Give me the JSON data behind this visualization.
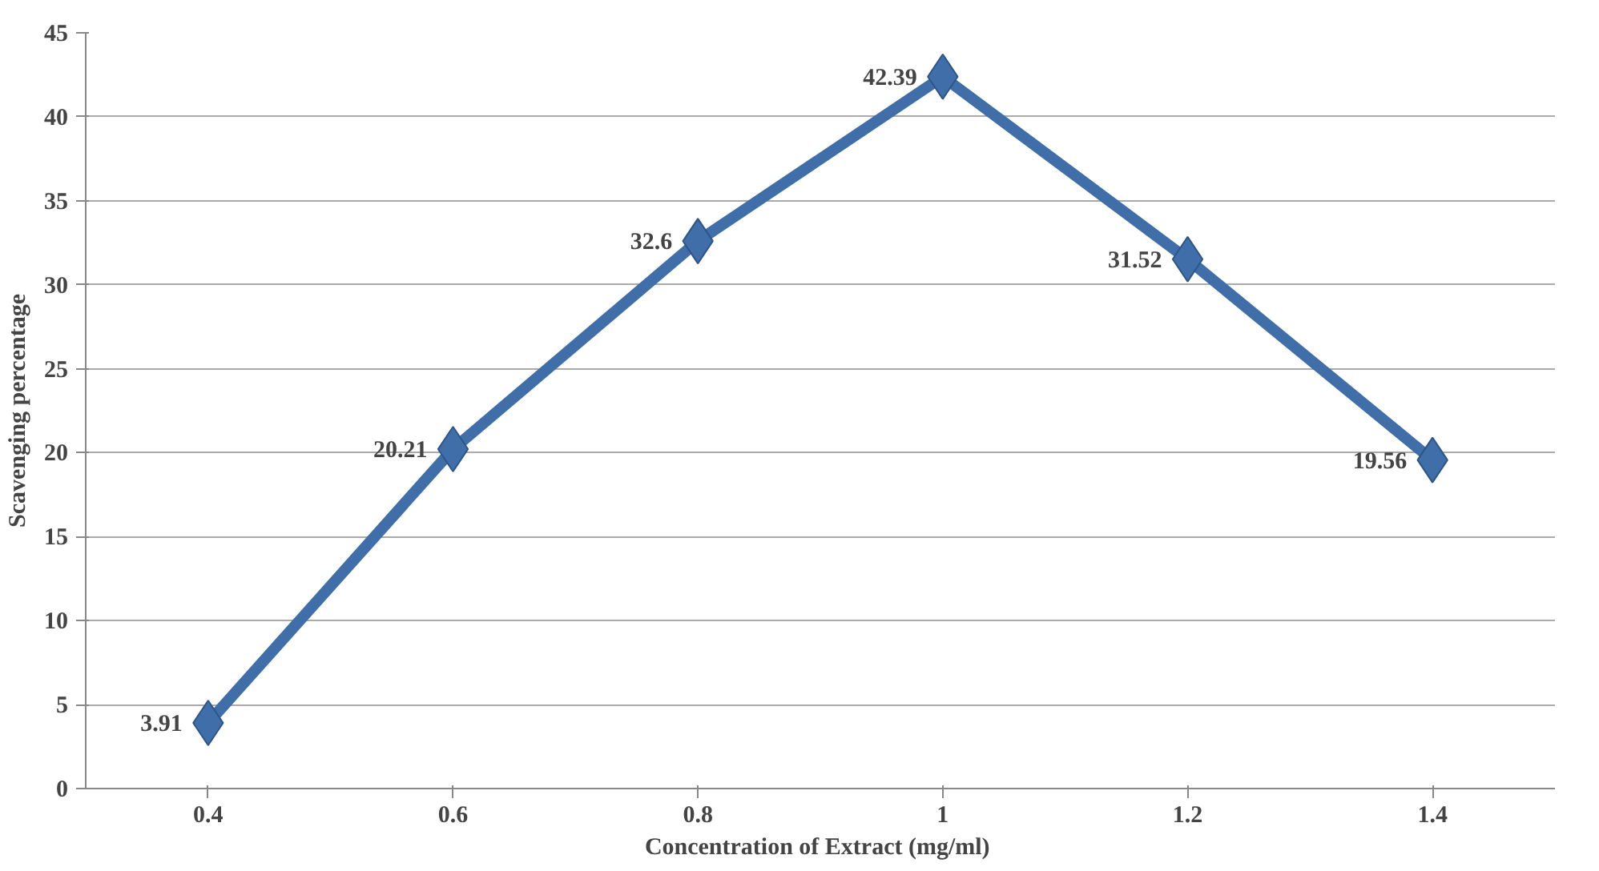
{
  "chart_data": {
    "type": "line",
    "xlabel": "Concentration of  Extract (mg/ml)",
    "ylabel": "Scavenging percentage",
    "categories": [
      "0.4",
      "0.6",
      "0.8",
      "1",
      "1.2",
      "1.4"
    ],
    "series": [
      {
        "color": "#3f6ea8",
        "values": [
          3.91,
          20.21,
          32.6,
          42.39,
          31.52,
          19.56
        ]
      }
    ],
    "ylim": [
      0,
      45
    ],
    "yticks": [
      0,
      5,
      10,
      15,
      20,
      25,
      30,
      35,
      40,
      45
    ],
    "grid": "y",
    "marker": "diamond",
    "line_style": "solid",
    "data_labels": true
  }
}
